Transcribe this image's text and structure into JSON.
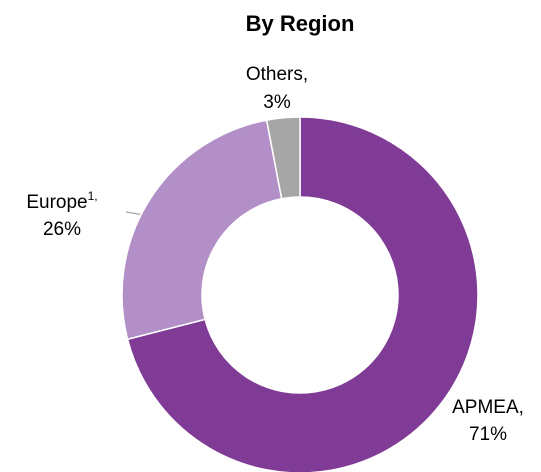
{
  "chart_data": {
    "type": "donut",
    "title": "By Region",
    "categories": [
      "APMEA,",
      "Europe",
      "Others,"
    ],
    "category_notes": {
      "1": "1,"
    },
    "values": [
      71,
      26,
      3
    ],
    "value_labels": [
      "71%",
      "26%",
      "3%"
    ],
    "colors": [
      "#7f3b96",
      "#b28fc6",
      "#a6a6a6"
    ]
  }
}
